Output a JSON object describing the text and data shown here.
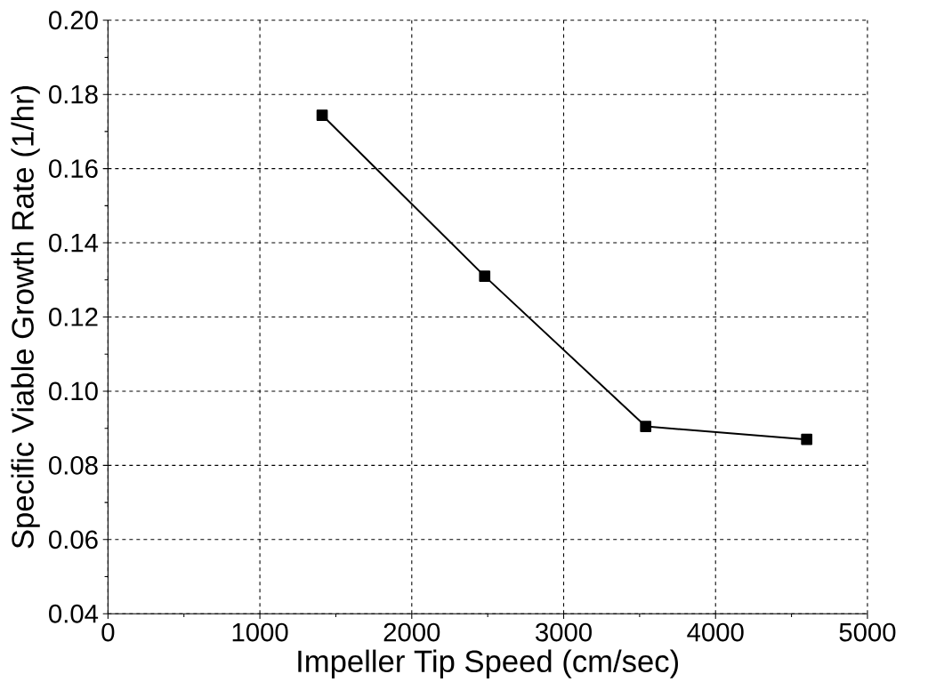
{
  "chart_data": {
    "type": "line",
    "xlabel": "Impeller Tip Speed (cm/sec)",
    "ylabel": "Specific Viable Growth Rate (1/hr)",
    "x": [
      1410,
      2480,
      3540,
      4600
    ],
    "series": [
      {
        "color": "#000000",
        "values": [
          0.1744,
          0.131,
          0.0905,
          0.087
        ]
      }
    ],
    "xlim": [
      0,
      5000
    ],
    "xticks": [
      0,
      1000,
      2000,
      3000,
      4000,
      5000
    ],
    "ylim": [
      0.04,
      0.2
    ],
    "yticks": [
      {
        "value": 0.04,
        "label": "0.04"
      },
      {
        "value": 0.06,
        "label": "0.06"
      },
      {
        "value": 0.08,
        "label": "0.08"
      },
      {
        "value": 0.1,
        "label": "0.10"
      },
      {
        "value": 0.12,
        "label": "0.12"
      },
      {
        "value": 0.14,
        "label": "0.14"
      },
      {
        "value": 0.16,
        "label": "0.16"
      },
      {
        "value": 0.18,
        "label": "0.18"
      },
      {
        "value": 0.2,
        "label": "0.20"
      }
    ],
    "grid": true,
    "marker": "square",
    "line_style": "solid"
  }
}
